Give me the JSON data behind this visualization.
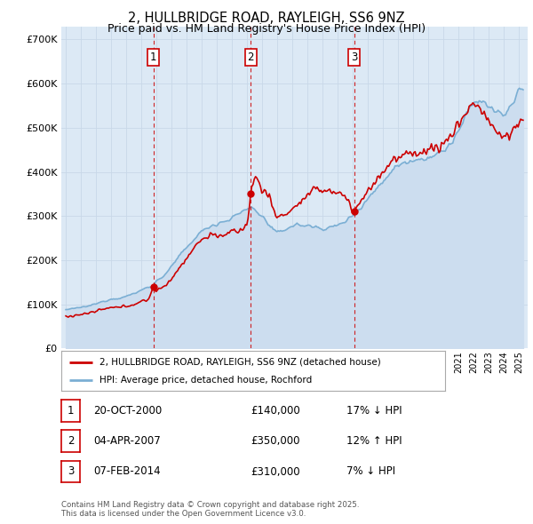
{
  "title": "2, HULLBRIDGE ROAD, RAYLEIGH, SS6 9NZ",
  "subtitle": "Price paid vs. HM Land Registry's House Price Index (HPI)",
  "ylim": [
    0,
    730000
  ],
  "yticks": [
    0,
    100000,
    200000,
    300000,
    400000,
    500000,
    600000,
    700000
  ],
  "background_color": "#dce9f5",
  "grid_color": "#b8cfe0",
  "transactions": [
    {
      "num": 1,
      "date": "20-OCT-2000",
      "price": 140000,
      "year": 2000.8,
      "hpi_pct": "17%",
      "hpi_dir": "↓"
    },
    {
      "num": 2,
      "date": "04-APR-2007",
      "price": 350000,
      "year": 2007.25,
      "hpi_pct": "12%",
      "hpi_dir": "↑"
    },
    {
      "num": 3,
      "date": "07-FEB-2014",
      "price": 310000,
      "year": 2014.1,
      "hpi_pct": "7%",
      "hpi_dir": "↓"
    }
  ],
  "legend_line1": "2, HULLBRIDGE ROAD, RAYLEIGH, SS6 9NZ (detached house)",
  "legend_line2": "HPI: Average price, detached house, Rochford",
  "footer": "Contains HM Land Registry data © Crown copyright and database right 2025.\nThis data is licensed under the Open Government Licence v3.0.",
  "red_line_color": "#cc0000",
  "blue_line_color": "#7bafd4",
  "blue_fill_color": "#ccddef"
}
